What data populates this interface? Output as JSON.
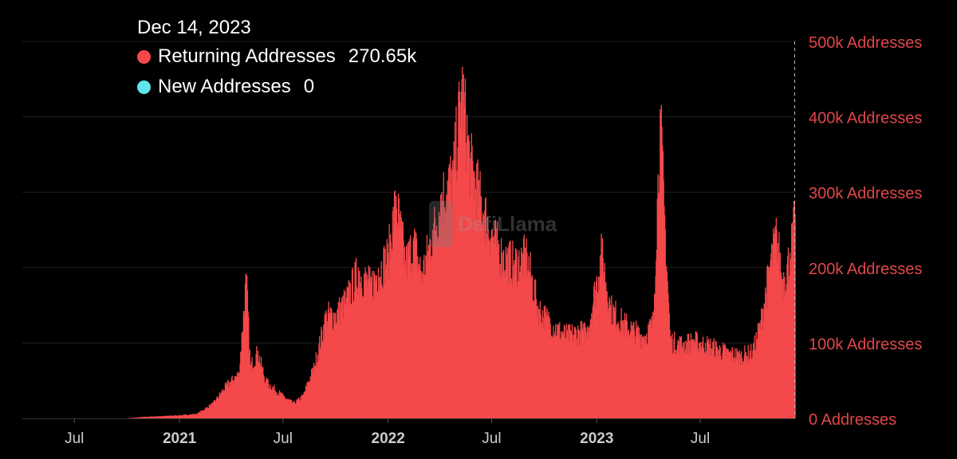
{
  "tooltip": {
    "date": "Dec 14, 2023",
    "series": [
      {
        "name": "Returning Addresses",
        "value": "270.65k",
        "color": "#f4484b"
      },
      {
        "name": "New Addresses",
        "value": "0",
        "color": "#5ee6ee"
      }
    ]
  },
  "watermark": "DefiLlama",
  "colors": {
    "returning": "#f4484b",
    "new": "#5ee6ee",
    "axis_text": "#e0474a",
    "grid": "#1e1e1e"
  },
  "chart_data": {
    "type": "bar",
    "y_axis": {
      "position": "right",
      "min": 0,
      "max": 500000,
      "ticks": [
        0,
        100000,
        200000,
        300000,
        400000,
        500000
      ],
      "tick_labels": [
        "0 Addresses",
        "100k Addresses",
        "200k Addresses",
        "300k Addresses",
        "400k Addresses",
        "500k Addresses"
      ]
    },
    "x_axis": {
      "start": "2020-04-01",
      "end": "2023-12-14",
      "ticks": [
        {
          "date": "2020-07-01",
          "label": "Jul",
          "bold": false
        },
        {
          "date": "2021-01-01",
          "label": "2021",
          "bold": true
        },
        {
          "date": "2021-07-01",
          "label": "Jul",
          "bold": false
        },
        {
          "date": "2022-01-01",
          "label": "2022",
          "bold": true
        },
        {
          "date": "2022-07-01",
          "label": "Jul",
          "bold": false
        },
        {
          "date": "2023-01-01",
          "label": "2023",
          "bold": true
        },
        {
          "date": "2023-07-01",
          "label": "Jul",
          "bold": false
        }
      ]
    },
    "grid": true,
    "series": [
      {
        "name": "Returning Addresses",
        "color": "#f4484b",
        "points": [
          [
            "2020-04-01",
            0
          ],
          [
            "2020-10-01",
            0
          ],
          [
            "2020-11-01",
            2000
          ],
          [
            "2020-12-01",
            3000
          ],
          [
            "2021-01-01",
            4000
          ],
          [
            "2021-02-01",
            6000
          ],
          [
            "2021-03-01",
            20000
          ],
          [
            "2021-03-25",
            45000
          ],
          [
            "2021-04-15",
            60000
          ],
          [
            "2021-04-28",
            190000
          ],
          [
            "2021-05-05",
            70000
          ],
          [
            "2021-05-18",
            90000
          ],
          [
            "2021-06-01",
            50000
          ],
          [
            "2021-07-01",
            30000
          ],
          [
            "2021-07-20",
            20000
          ],
          [
            "2021-08-05",
            30000
          ],
          [
            "2021-08-25",
            70000
          ],
          [
            "2021-09-15",
            140000
          ],
          [
            "2021-10-01",
            140000
          ],
          [
            "2021-10-20",
            160000
          ],
          [
            "2021-11-10",
            200000
          ],
          [
            "2021-12-01",
            180000
          ],
          [
            "2021-12-15",
            200000
          ],
          [
            "2022-01-01",
            220000
          ],
          [
            "2022-01-15",
            295000
          ],
          [
            "2022-02-01",
            210000
          ],
          [
            "2022-02-15",
            240000
          ],
          [
            "2022-03-01",
            195000
          ],
          [
            "2022-03-20",
            250000
          ],
          [
            "2022-04-05",
            300000
          ],
          [
            "2022-04-25",
            330000
          ],
          [
            "2022-05-10",
            450000
          ],
          [
            "2022-05-25",
            345000
          ],
          [
            "2022-06-10",
            300000
          ],
          [
            "2022-07-01",
            250000
          ],
          [
            "2022-07-20",
            220000
          ],
          [
            "2022-08-10",
            210000
          ],
          [
            "2022-09-01",
            220000
          ],
          [
            "2022-09-20",
            150000
          ],
          [
            "2022-10-05",
            135000
          ],
          [
            "2022-10-25",
            120000
          ],
          [
            "2022-11-10",
            112000
          ],
          [
            "2022-12-01",
            118000
          ],
          [
            "2022-12-15",
            115000
          ],
          [
            "2023-01-10",
            225000
          ],
          [
            "2023-01-25",
            150000
          ],
          [
            "2023-02-15",
            130000
          ],
          [
            "2023-03-05",
            120000
          ],
          [
            "2023-03-25",
            110000
          ],
          [
            "2023-04-10",
            130000
          ],
          [
            "2023-04-22",
            410000
          ],
          [
            "2023-05-01",
            250000
          ],
          [
            "2023-05-10",
            105000
          ],
          [
            "2023-06-01",
            100000
          ],
          [
            "2023-06-20",
            105000
          ],
          [
            "2023-07-10",
            100000
          ],
          [
            "2023-07-30",
            95000
          ],
          [
            "2023-08-20",
            88000
          ],
          [
            "2023-09-10",
            85000
          ],
          [
            "2023-10-01",
            90000
          ],
          [
            "2023-10-15",
            130000
          ],
          [
            "2023-11-01",
            210000
          ],
          [
            "2023-11-12",
            250000
          ],
          [
            "2023-11-22",
            185000
          ],
          [
            "2023-12-05",
            220000
          ],
          [
            "2023-12-14",
            270650
          ]
        ]
      },
      {
        "name": "New Addresses",
        "color": "#5ee6ee",
        "points": [
          [
            "2023-12-14",
            0
          ]
        ]
      }
    ]
  }
}
